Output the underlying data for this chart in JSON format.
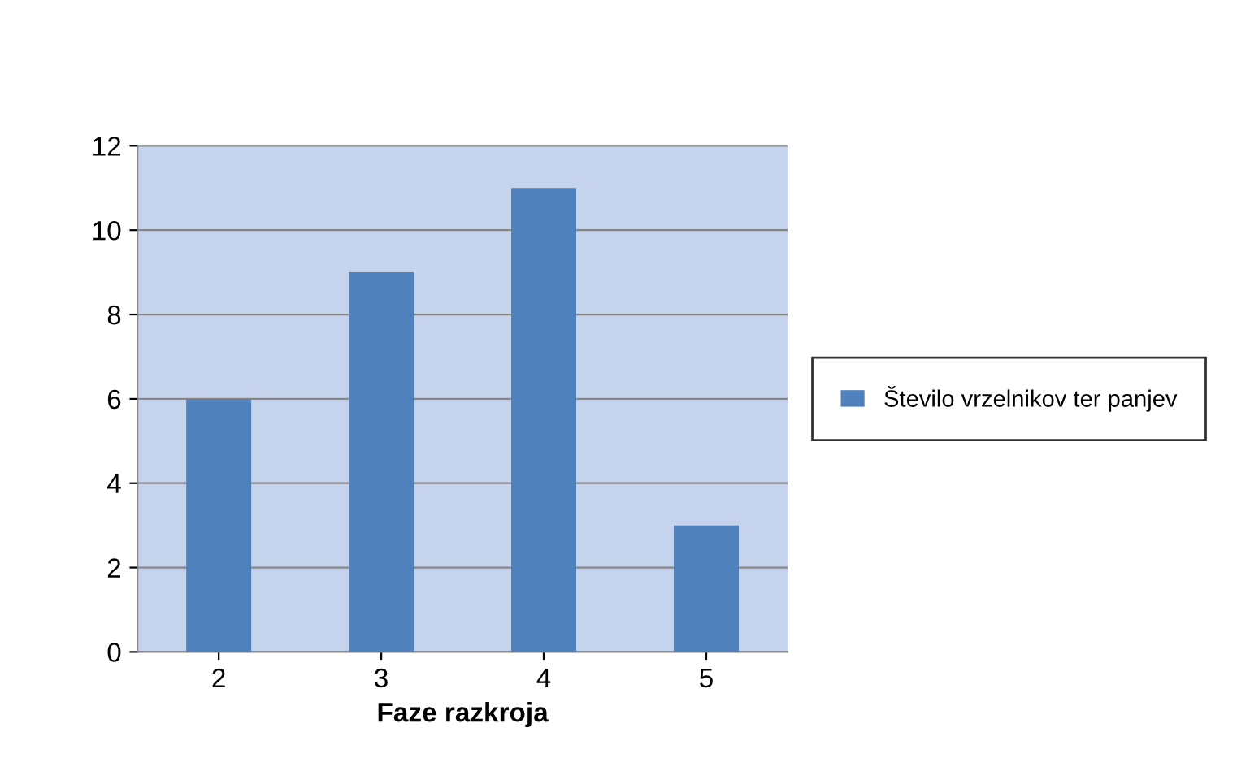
{
  "chart_data": {
    "type": "bar",
    "xlabel": "Faze razkroja",
    "categories": [
      "2",
      "3",
      "4",
      "5"
    ],
    "series": [
      {
        "name": "Število vrzelnikov ter panjev",
        "color": "#4f81bd",
        "values": [
          6,
          9,
          11,
          3
        ]
      }
    ],
    "ylim": [
      0,
      12
    ],
    "yticks": [
      0,
      2,
      4,
      6,
      8,
      10,
      12
    ],
    "grid": "y",
    "legend": "right"
  }
}
